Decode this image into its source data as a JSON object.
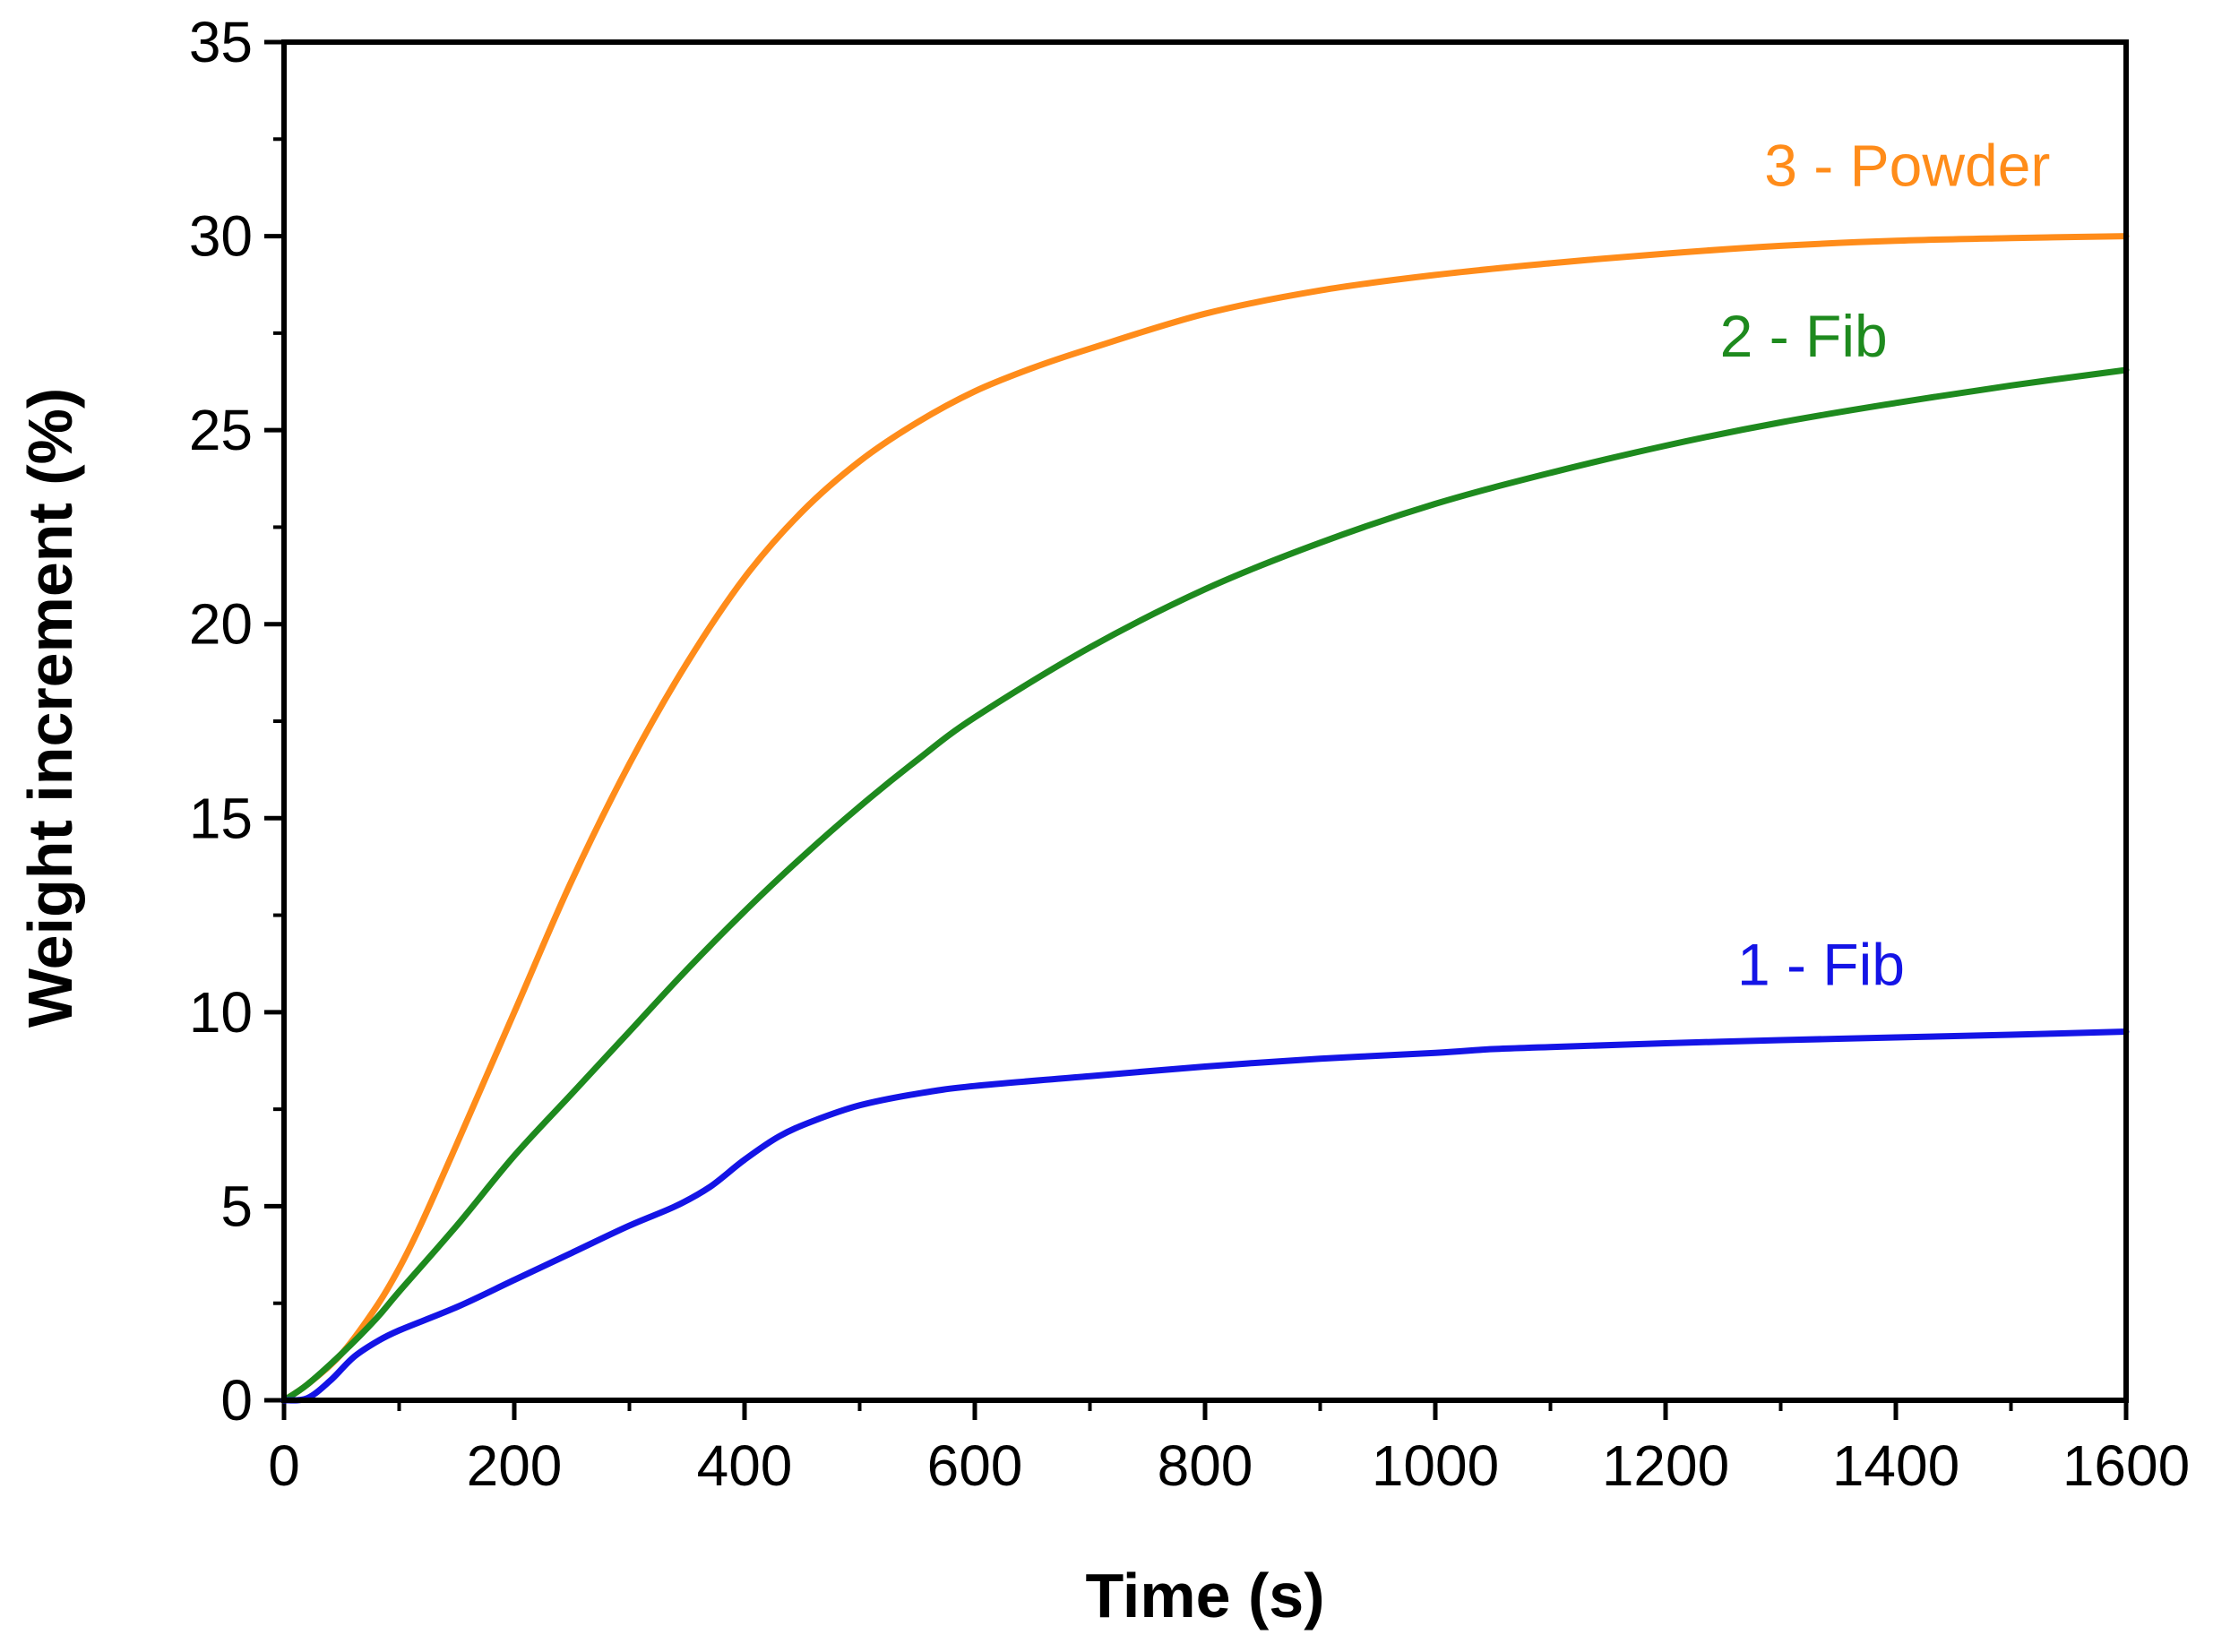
{
  "chart_data": {
    "type": "line",
    "title": "",
    "xlabel": "Time (s)",
    "ylabel": "Weight increment (%)",
    "xlim": [
      0,
      1600
    ],
    "ylim": [
      0,
      35
    ],
    "xticks": [
      0,
      200,
      400,
      600,
      800,
      1000,
      1200,
      1400,
      1600
    ],
    "yticks": [
      0,
      5,
      10,
      15,
      20,
      25,
      30,
      35
    ],
    "grid": false,
    "series": [
      {
        "name": "3 - Powder",
        "label": "3 - Powder",
        "color": "#FF8C1A",
        "x": [
          0,
          20,
          50,
          80,
          100,
          120,
          150,
          200,
          250,
          300,
          350,
          400,
          450,
          500,
          550,
          600,
          650,
          700,
          800,
          900,
          1000,
          1100,
          1200,
          1300,
          1400,
          1500,
          1600
        ],
        "y": [
          0,
          0.4,
          1.2,
          2.4,
          3.4,
          4.6,
          6.6,
          10.0,
          13.4,
          16.4,
          19.0,
          21.2,
          22.9,
          24.2,
          25.2,
          26.0,
          26.6,
          27.1,
          28.0,
          28.6,
          29.0,
          29.3,
          29.55,
          29.75,
          29.88,
          29.95,
          30.0
        ]
      },
      {
        "name": "2 - Fib",
        "label": "2 - Fib",
        "color": "#1E8A1E",
        "x": [
          0,
          20,
          50,
          80,
          100,
          150,
          200,
          250,
          300,
          350,
          400,
          450,
          500,
          550,
          600,
          700,
          800,
          900,
          1000,
          1100,
          1200,
          1300,
          1400,
          1500,
          1600
        ],
        "y": [
          0,
          0.4,
          1.2,
          2.1,
          2.8,
          4.5,
          6.3,
          7.9,
          9.5,
          11.1,
          12.6,
          14.0,
          15.3,
          16.5,
          17.6,
          19.4,
          20.9,
          22.1,
          23.1,
          23.9,
          24.6,
          25.2,
          25.7,
          26.15,
          26.55
        ]
      },
      {
        "name": "1 - Fib",
        "label": "1 - Fib",
        "color": "#1414E6",
        "x": [
          0,
          20,
          40,
          60,
          80,
          100,
          150,
          200,
          250,
          300,
          340,
          370,
          400,
          430,
          460,
          500,
          550,
          600,
          700,
          800,
          900,
          1000,
          1050,
          1100,
          1200,
          1300,
          1400,
          1500,
          1600
        ],
        "y": [
          0,
          0.05,
          0.5,
          1.1,
          1.5,
          1.8,
          2.4,
          3.1,
          3.8,
          4.5,
          5.0,
          5.5,
          6.2,
          6.8,
          7.2,
          7.6,
          7.9,
          8.1,
          8.35,
          8.6,
          8.8,
          8.95,
          9.05,
          9.1,
          9.2,
          9.28,
          9.35,
          9.42,
          9.5
        ]
      }
    ]
  }
}
